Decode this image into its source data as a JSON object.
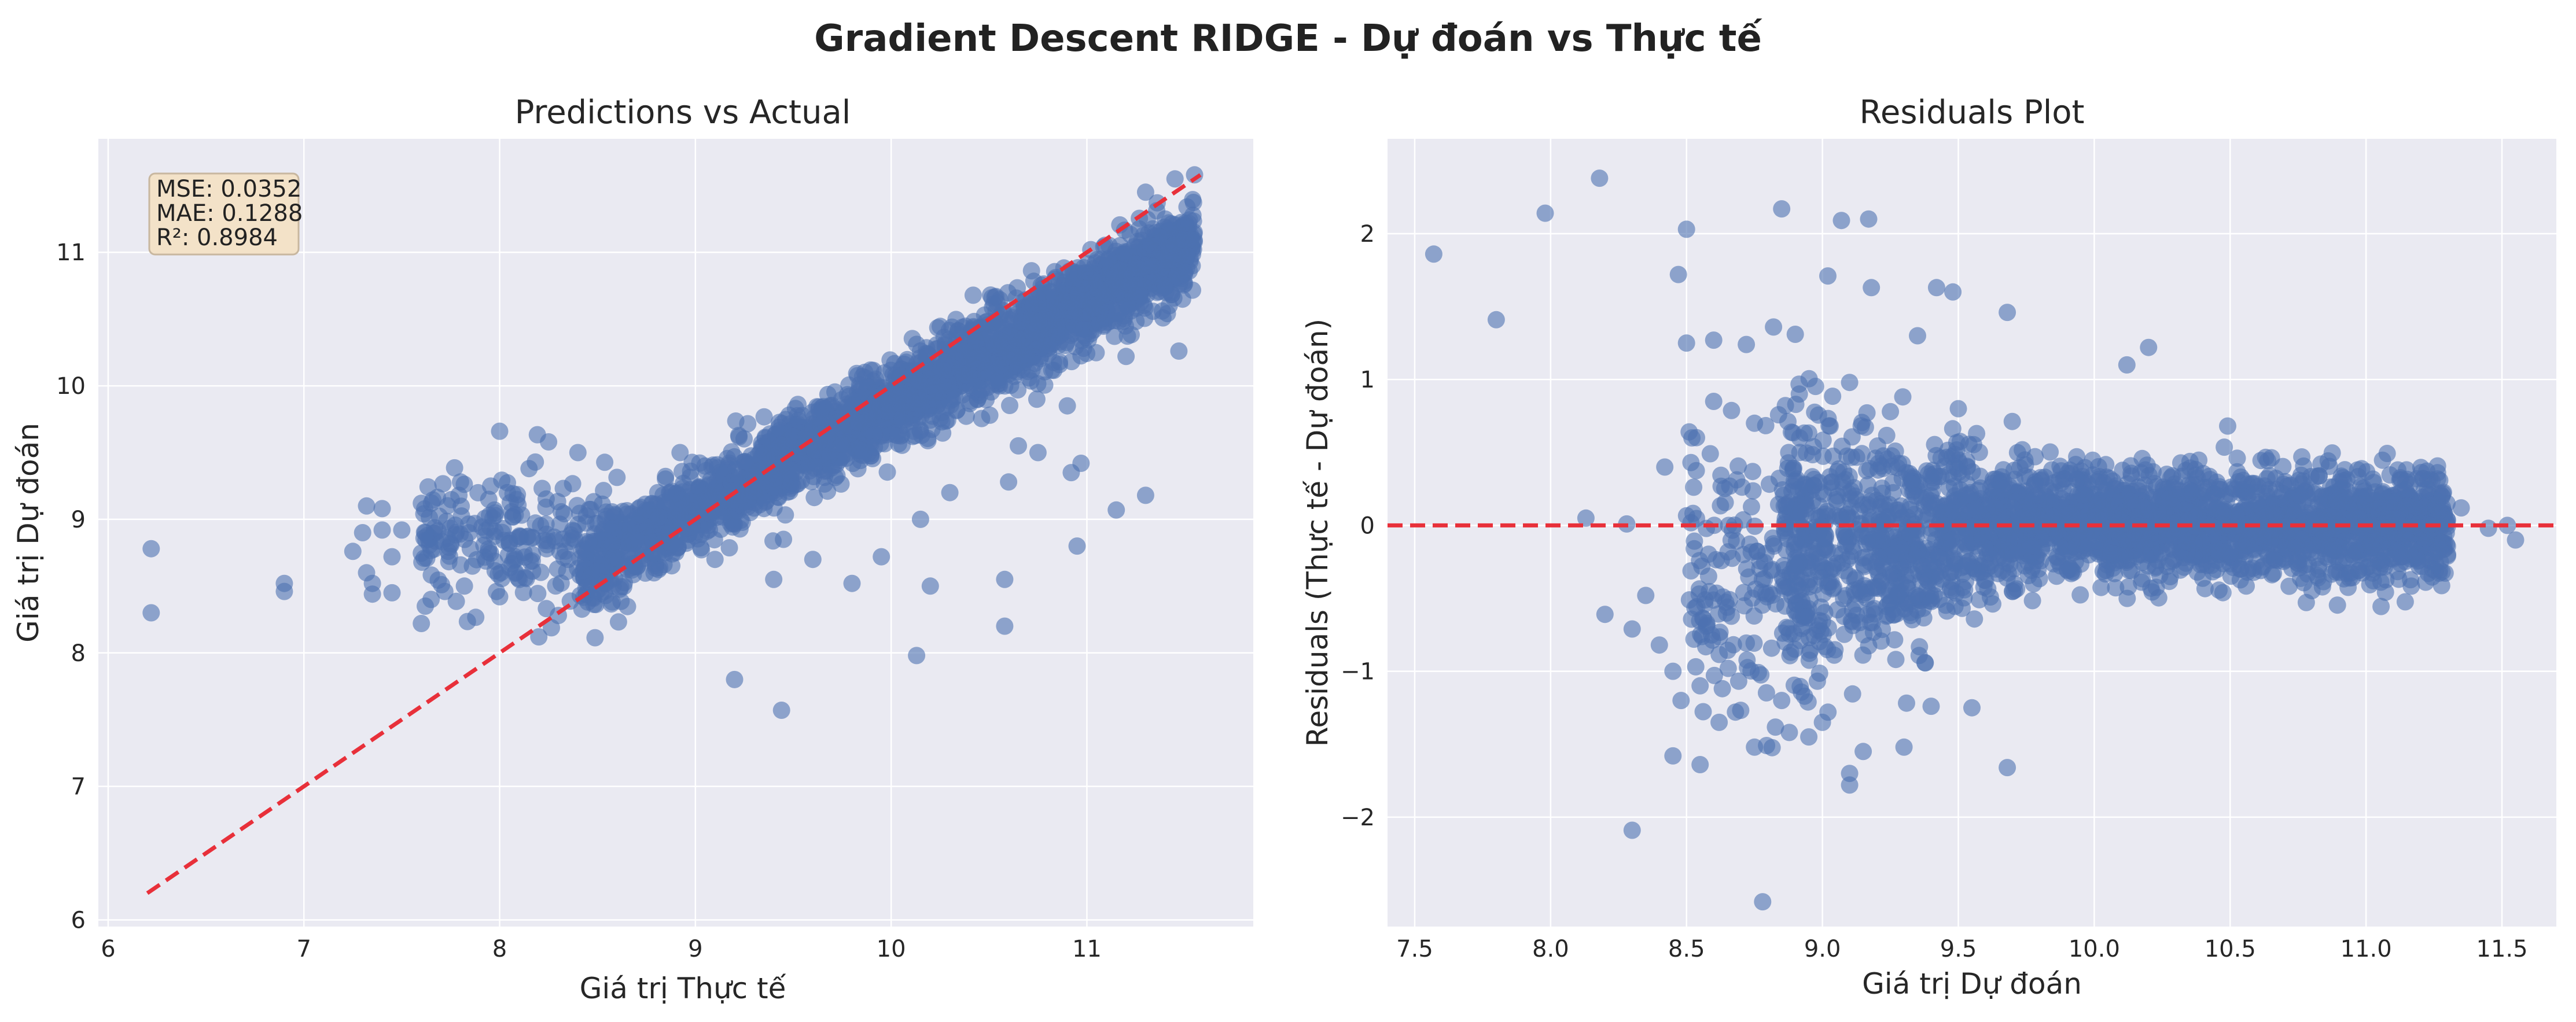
{
  "figure": {
    "suptitle": "Gradient Descent RIDGE - Dự đoán vs Thực tế"
  },
  "colors": {
    "background": "#ffffff",
    "axes_face": "#eaeaf2",
    "grid": "#ffffff",
    "points": "#4c72b0",
    "reference_line": "#e8303a",
    "stats_box_fill": "#f3e2c8",
    "stats_box_edge": "#c8b79f"
  },
  "chart_data": [
    {
      "type": "scatter",
      "title": "Predictions vs Actual",
      "xlabel": "Giá trị Thực tế",
      "ylabel": "Giá trị Dự đoán",
      "xlim": [
        5.95,
        11.85
      ],
      "ylim": [
        5.95,
        11.85
      ],
      "xticks": [
        6,
        7,
        8,
        9,
        10,
        11
      ],
      "yticks": [
        6,
        7,
        8,
        9,
        10,
        11
      ],
      "grid": true,
      "stats_box": {
        "position": "top-left",
        "lines": [
          "MSE: 0.0352",
          "MAE: 0.1288",
          "R²: 0.8984"
        ]
      },
      "reference_line": {
        "style": "dashed",
        "points": [
          [
            6.2,
            6.2
          ],
          [
            11.58,
            11.58
          ]
        ]
      },
      "point_cloud": {
        "description_free": true,
        "x_range": [
          6.2,
          11.58
        ],
        "trend": "y ≈ 0.78·x + 2.05"
      },
      "points": [
        [
          6.22,
          8.78
        ],
        [
          6.22,
          8.3
        ],
        [
          6.9,
          8.52
        ],
        [
          6.9,
          8.46
        ],
        [
          7.25,
          8.76
        ],
        [
          7.3,
          8.9
        ],
        [
          7.32,
          9.1
        ],
        [
          7.35,
          8.52
        ],
        [
          7.35,
          8.44
        ],
        [
          7.32,
          8.6
        ],
        [
          7.4,
          8.92
        ],
        [
          7.4,
          9.08
        ],
        [
          7.45,
          8.72
        ],
        [
          7.45,
          8.45
        ],
        [
          7.5,
          8.92
        ],
        [
          7.6,
          9.12
        ],
        [
          7.6,
          8.22
        ],
        [
          7.62,
          8.35
        ],
        [
          7.62,
          8.9
        ],
        [
          7.65,
          8.4
        ],
        [
          7.72,
          8.46
        ],
        [
          7.75,
          8.82
        ],
        [
          7.8,
          9.28
        ],
        [
          7.82,
          8.5
        ],
        [
          7.85,
          8.78
        ],
        [
          8.0,
          9.66
        ],
        [
          8.0,
          8.42
        ],
        [
          8.05,
          8.82
        ],
        [
          8.1,
          8.55
        ],
        [
          8.15,
          9.38
        ],
        [
          8.2,
          8.12
        ],
        [
          8.25,
          9.58
        ],
        [
          8.3,
          8.28
        ],
        [
          8.35,
          8.7
        ],
        [
          8.4,
          9.5
        ],
        [
          9.2,
          7.8
        ],
        [
          9.44,
          7.57
        ],
        [
          10.13,
          7.98
        ],
        [
          10.58,
          8.2
        ],
        [
          10.58,
          8.55
        ],
        [
          10.2,
          8.5
        ],
        [
          10.95,
          8.8
        ],
        [
          10.92,
          9.35
        ],
        [
          10.97,
          9.42
        ],
        [
          11.15,
          9.07
        ],
        [
          11.3,
          9.18
        ],
        [
          11.47,
          10.26
        ],
        [
          10.65,
          9.55
        ],
        [
          10.75,
          9.5
        ],
        [
          10.9,
          9.85
        ],
        [
          11.2,
          10.22
        ],
        [
          10.6,
          9.28
        ],
        [
          9.4,
          8.55
        ],
        [
          9.6,
          8.7
        ],
        [
          9.8,
          8.52
        ],
        [
          9.95,
          8.72
        ],
        [
          10.15,
          9.0
        ],
        [
          10.3,
          9.2
        ],
        [
          9.1,
          8.7
        ],
        [
          9.45,
          8.85
        ],
        [
          11.45,
          11.55
        ],
        [
          11.55,
          11.58
        ],
        [
          11.5,
          10.85
        ],
        [
          11.4,
          10.75
        ],
        [
          11.3,
          11.45
        ]
      ]
    },
    {
      "type": "scatter",
      "title": "Residuals Plot",
      "xlabel": "Giá trị Dự đoán",
      "ylabel": "Residuals (Thực tế - Dự đoán)",
      "xlim": [
        7.4,
        11.7
      ],
      "ylim": [
        -2.75,
        2.65
      ],
      "xticks": [
        7.5,
        8.0,
        8.5,
        9.0,
        9.5,
        10.0,
        10.5,
        11.0,
        11.5
      ],
      "xtick_labels": [
        "7.5",
        "8.0",
        "8.5",
        "9.0",
        "9.5",
        "10.0",
        "10.5",
        "11.0",
        "11.5"
      ],
      "yticks": [
        -2,
        -1,
        0,
        1,
        2
      ],
      "ytick_labels": [
        "−2",
        "−1",
        "0",
        "1",
        "2"
      ],
      "grid": true,
      "reference_line": {
        "style": "dashed",
        "y": 0
      },
      "points": [
        [
          7.57,
          1.86
        ],
        [
          7.8,
          1.41
        ],
        [
          7.98,
          2.14
        ],
        [
          8.18,
          2.38
        ],
        [
          8.13,
          0.05
        ],
        [
          8.28,
          0.01
        ],
        [
          8.3,
          -2.09
        ],
        [
          8.78,
          -2.58
        ],
        [
          8.5,
          2.03
        ],
        [
          8.47,
          1.72
        ],
        [
          8.85,
          2.17
        ],
        [
          9.07,
          2.09
        ],
        [
          9.17,
          2.1
        ],
        [
          9.02,
          1.71
        ],
        [
          9.18,
          1.63
        ],
        [
          9.42,
          1.63
        ],
        [
          9.48,
          1.6
        ],
        [
          9.35,
          1.3
        ],
        [
          9.68,
          1.46
        ],
        [
          8.6,
          1.27
        ],
        [
          8.5,
          1.25
        ],
        [
          8.72,
          1.24
        ],
        [
          8.82,
          1.36
        ],
        [
          8.9,
          1.31
        ],
        [
          10.12,
          1.1
        ],
        [
          10.2,
          1.22
        ],
        [
          9.1,
          -1.7
        ],
        [
          9.1,
          -1.78
        ],
        [
          9.15,
          -1.55
        ],
        [
          9.68,
          -1.66
        ],
        [
          8.45,
          -1.58
        ],
        [
          8.55,
          -1.64
        ],
        [
          8.75,
          -1.52
        ],
        [
          8.2,
          -0.61
        ],
        [
          8.3,
          -0.71
        ],
        [
          8.35,
          -0.48
        ],
        [
          8.4,
          -0.82
        ],
        [
          8.45,
          -1.0
        ],
        [
          8.48,
          -1.2
        ],
        [
          8.55,
          -1.1
        ],
        [
          8.62,
          -1.35
        ],
        [
          8.68,
          -1.28
        ],
        [
          9.3,
          -1.52
        ],
        [
          9.55,
          -1.25
        ],
        [
          9.4,
          -1.24
        ],
        [
          8.85,
          -1.2
        ],
        [
          8.95,
          -1.45
        ],
        [
          9.0,
          -1.35
        ],
        [
          11.45,
          -0.02
        ],
        [
          11.55,
          -0.1
        ],
        [
          11.52,
          0.0
        ],
        [
          11.35,
          0.12
        ],
        [
          11.3,
          -0.2
        ],
        [
          8.42,
          0.4
        ],
        [
          8.52,
          0.6
        ],
        [
          8.6,
          0.85
        ],
        [
          8.75,
          0.7
        ],
        [
          9.1,
          0.98
        ],
        [
          9.25,
          0.78
        ],
        [
          9.5,
          0.8
        ]
      ]
    }
  ]
}
